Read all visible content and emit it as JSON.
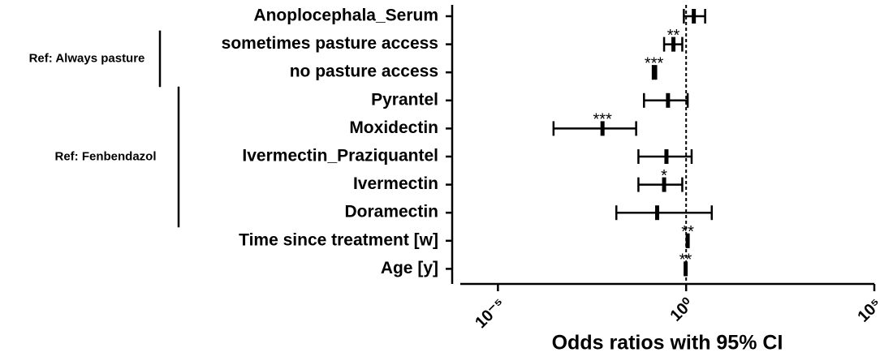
{
  "chart_data": {
    "type": "forest",
    "x_label": "Odds ratios with 95% CI",
    "xlim": [
      1e-06,
      100000
    ],
    "xscale": "log",
    "xticks": [
      {
        "value": 1e-05,
        "label": "10⁻⁵"
      },
      {
        "value": 1,
        "label": "10⁰"
      },
      {
        "value": 100000,
        "label": "10⁵"
      }
    ],
    "reference_line": 1,
    "color": "#000000",
    "groups": [
      {
        "rows": [
          {
            "label": "Anoplocephala_Serum",
            "or": 1.6,
            "lower": 0.87,
            "upper": 3.2
          }
        ]
      },
      {
        "label": "Ref: Always pasture",
        "rows": [
          {
            "label": "sometimes pasture access",
            "or": 0.46,
            "lower": 0.26,
            "upper": 0.79,
            "stars": "**"
          },
          {
            "label": "no pasture access",
            "or": 0.14,
            "lower": 0.13,
            "upper": 0.16,
            "stars": "***"
          }
        ]
      },
      {
        "label": "Ref: Fenbendazol",
        "rows": [
          {
            "label": "Pyrantel",
            "or": 0.33,
            "lower": 0.076,
            "upper": 1.1
          },
          {
            "label": "Moxidectin",
            "or": 0.006,
            "lower": 0.0003,
            "upper": 0.047,
            "stars": "***"
          },
          {
            "label": "Ivermectin_Praziquantel",
            "or": 0.3,
            "lower": 0.054,
            "upper": 1.4
          },
          {
            "label": "Ivermectin",
            "or": 0.26,
            "lower": 0.054,
            "upper": 0.79,
            "stars": "*"
          },
          {
            "label": "Doramectin",
            "or": 0.17,
            "lower": 0.014,
            "upper": 4.8
          }
        ]
      },
      {
        "rows": [
          {
            "label": "Time since treatment [w]",
            "or": 1.1,
            "lower": 1.05,
            "upper": 1.15,
            "stars": "**"
          },
          {
            "label": "Age [y]",
            "or": 0.97,
            "lower": 0.94,
            "upper": 1.0,
            "stars": "**"
          }
        ]
      }
    ]
  }
}
